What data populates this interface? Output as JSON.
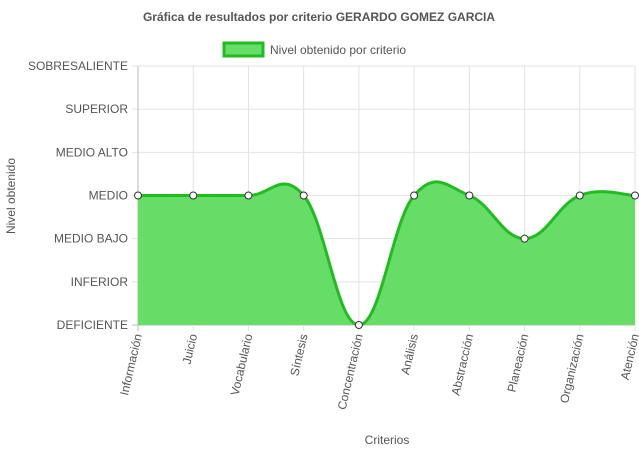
{
  "chart_data": {
    "type": "area",
    "title": "Gráfica de resultados por criterio GERARDO GOMEZ GARCIA",
    "xlabel": "Criterios",
    "ylabel": "Nivel obtenido",
    "categories": [
      "Información",
      "Juicio",
      "Vocabulario",
      "Síntesis",
      "Concentración",
      "Análisis",
      "Abstracción",
      "Planeación",
      "Organización",
      "Atención"
    ],
    "y_levels": [
      "DEFICIENTE",
      "INFERIOR",
      "MEDIO BAJO",
      "MEDIO",
      "MEDIO ALTO",
      "SUPERIOR",
      "SOBRESALIENTE"
    ],
    "ylim": [
      1,
      7
    ],
    "series": [
      {
        "name": "Nivel obtenido por criterio",
        "values": [
          4,
          4,
          4,
          4,
          1,
          4,
          4,
          3,
          4,
          4
        ],
        "value_labels": [
          "MEDIO",
          "MEDIO",
          "MEDIO",
          "MEDIO",
          "DEFICIENTE",
          "MEDIO",
          "MEDIO",
          "MEDIO BAJO",
          "MEDIO",
          "MEDIO"
        ],
        "fill_color": "#66dd66",
        "line_color": "#22bb22"
      }
    ],
    "legend_position": "top",
    "grid": true
  }
}
